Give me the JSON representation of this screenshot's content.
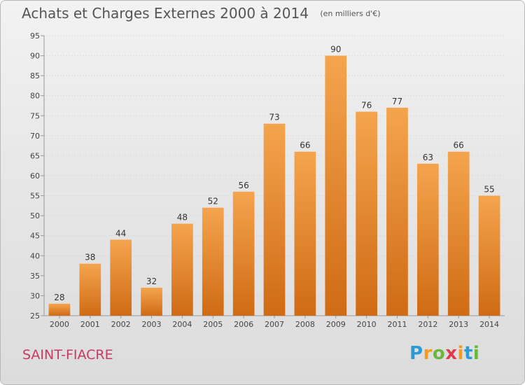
{
  "title": "Achats et Charges Externes 2000 à 2014",
  "subtitle": "(en milliers d'€)",
  "place": "SAINT-FIACRE",
  "logo": {
    "letters": [
      "P",
      "r",
      "o",
      "x",
      "i",
      "t",
      "i"
    ],
    "colors": [
      "#2b9bd6",
      "#f39a1f",
      "#69b73b",
      "#e03a4e",
      "#f39a1f",
      "#2b9bd6",
      "#69b73b"
    ]
  },
  "colors": {
    "bar_top": "#f5a44e",
    "bar_bottom": "#cf6b14",
    "axis": "#999999",
    "grid": "#cfcfcf",
    "place": "#c63a63"
  },
  "chart_data": {
    "type": "bar",
    "title": "Achats et Charges Externes 2000 à 2014",
    "subtitle": "(en milliers d'€)",
    "categories": [
      "2000",
      "2001",
      "2002",
      "2003",
      "2004",
      "2005",
      "2006",
      "2007",
      "2008",
      "2009",
      "2010",
      "2011",
      "2012",
      "2013",
      "2014"
    ],
    "values": [
      28,
      38,
      44,
      32,
      48,
      52,
      56,
      73,
      66,
      90,
      76,
      77,
      63,
      66,
      55
    ],
    "ylim": [
      25,
      95
    ],
    "yticks": [
      25,
      30,
      35,
      40,
      45,
      50,
      55,
      60,
      65,
      70,
      75,
      80,
      85,
      90,
      95
    ],
    "grid": true,
    "xlabel": "",
    "ylabel": ""
  }
}
